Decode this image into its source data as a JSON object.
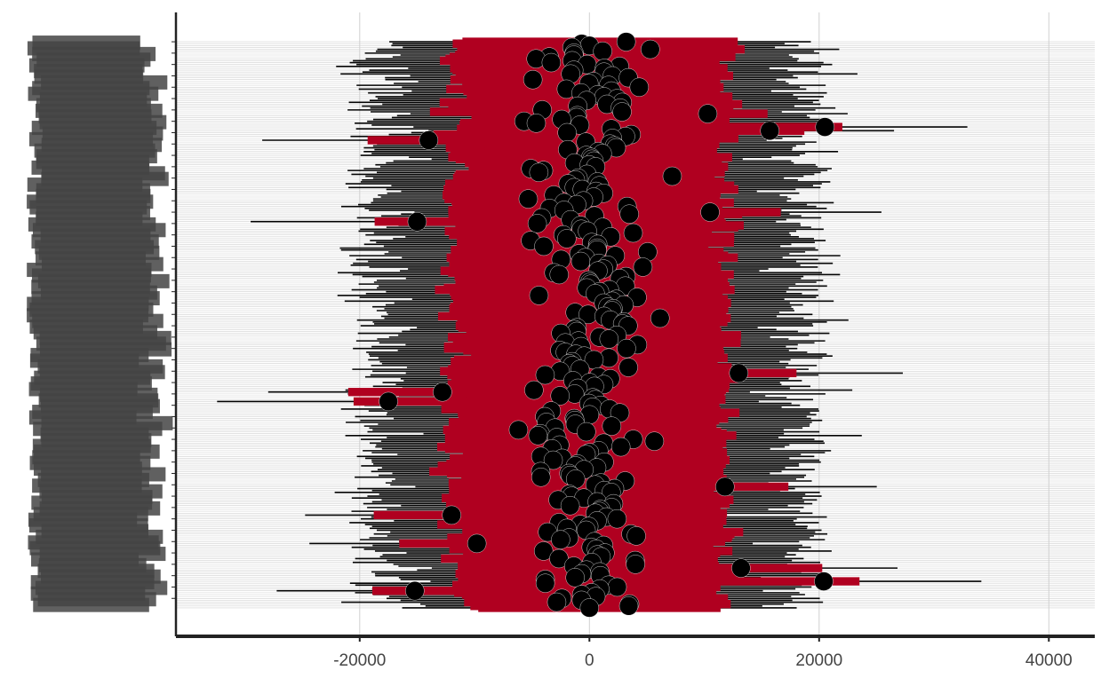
{
  "chart_data": {
    "type": "scatter",
    "subtype": "forest-plot",
    "title": "",
    "xlabel": "",
    "ylabel": "",
    "xlim": [
      -36000,
      44000
    ],
    "x_ticks": [
      -20000,
      0,
      20000,
      40000
    ],
    "x_tick_labels": [
      "-20000",
      "0",
      "20000",
      "40000"
    ],
    "grid": {
      "vertical_major": true,
      "horizontal_per_row": true
    },
    "row_count": 300,
    "y_tick_labels_note": "category labels are overplotted and illegible",
    "colors": {
      "point": "#000000",
      "inner_interval": "#b00020",
      "outer_interval": "#000000",
      "gridline": "#d0d0d0",
      "axis": "#222222",
      "label": "#444444"
    },
    "estimate_spread_sd": 3400,
    "inner_interval_half_width_typical": 11000,
    "outer_interval_half_width_typical": 18000,
    "highlighted_points": [
      {
        "row": 2,
        "estimate": 0
      },
      {
        "row": 4,
        "estimate": 5300
      },
      {
        "row": 10,
        "estimate": -1500
      },
      {
        "row": 38,
        "estimate": 10300
      },
      {
        "row": 45,
        "estimate": 20500
      },
      {
        "row": 47,
        "estimate": 15700
      },
      {
        "row": 52,
        "estimate": -14000
      },
      {
        "row": 90,
        "estimate": 10500
      },
      {
        "row": 95,
        "estimate": -15000
      },
      {
        "row": 175,
        "estimate": 13000
      },
      {
        "row": 185,
        "estimate": -12800
      },
      {
        "row": 190,
        "estimate": -17500
      },
      {
        "row": 235,
        "estimate": 11800
      },
      {
        "row": 250,
        "estimate": -12000
      },
      {
        "row": 265,
        "estimate": -9800
      },
      {
        "row": 278,
        "estimate": 13200
      },
      {
        "row": 285,
        "estimate": 20400
      },
      {
        "row": 290,
        "estimate": -15200
      },
      {
        "row": 297,
        "estimate": 3500
      },
      {
        "row": 299,
        "estimate": 0
      }
    ]
  }
}
